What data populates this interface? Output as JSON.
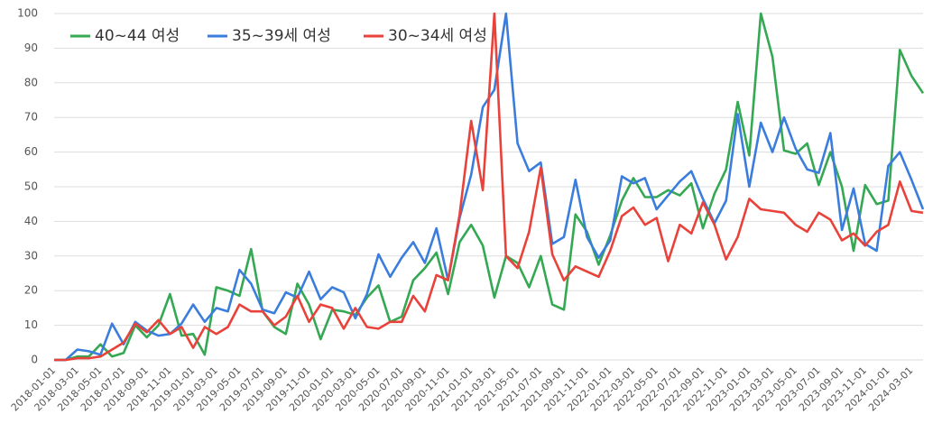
{
  "chart_data": {
    "type": "line",
    "categories": [
      "2018-01-01",
      null,
      "2018-03-01",
      null,
      "2018-05-01",
      null,
      "2018-07-01",
      null,
      "2018-09-01",
      null,
      "2018-11-01",
      null,
      "2019-01-01",
      null,
      "2019-03-01",
      null,
      "2019-05-01",
      null,
      "2019-07-01",
      null,
      "2019-09-01",
      null,
      "2019-11-01",
      null,
      "2020-01-01",
      null,
      "2020-03-01",
      null,
      "2020-05-01",
      null,
      "2020-07-01",
      null,
      "2020-09-01",
      null,
      "2020-11-01",
      null,
      "2021-01-01",
      null,
      "2021-03-01",
      null,
      "2021-05-01",
      null,
      "2021-07-01",
      null,
      "2021-09-01",
      null,
      "2021-11-01",
      null,
      "2022-01-01",
      null,
      "2022-03-01",
      null,
      "2022-05-01",
      null,
      "2022-07-01",
      null,
      "2022-09-01",
      null,
      "2022-11-01",
      null,
      "2023-01-01",
      null,
      "2023-03-01",
      null,
      "2023-05-01",
      null,
      "2023-07-01",
      null,
      "2023-09-01",
      null,
      "2023-11-01",
      null,
      "2024-01-01",
      null,
      "2024-03-01",
      null
    ],
    "series": [
      {
        "name": "40~44 여성",
        "color": "#34a853",
        "values": [
          0,
          0,
          1,
          1,
          4.5,
          1,
          2,
          10,
          6.5,
          10,
          19,
          7,
          7.5,
          1.5,
          21,
          20,
          18.5,
          32,
          14,
          9.5,
          7.5,
          22,
          16,
          6,
          14.5,
          14,
          13,
          18,
          21.5,
          11,
          12.5,
          23,
          26.5,
          31,
          19,
          34,
          39,
          33,
          18,
          30,
          28,
          21,
          30,
          16,
          14.5,
          42,
          37,
          27.5,
          36,
          46,
          52.5,
          47,
          47,
          49,
          47.5,
          51,
          38,
          48,
          55,
          74.5,
          59,
          100,
          87.5,
          60.5,
          59.5,
          62.5,
          50.5,
          60,
          50,
          31.5,
          50.5,
          45,
          46,
          89.5,
          82,
          77
        ]
      },
      {
        "name": "35~39세 여성",
        "color": "#3b7ddd",
        "values": [
          0,
          0,
          3,
          2.5,
          1.5,
          10.5,
          4.5,
          11,
          8.5,
          7,
          7.5,
          10.5,
          16,
          11,
          15,
          14,
          26,
          22,
          14.5,
          13.5,
          19.5,
          18,
          25.5,
          17.5,
          21,
          19.5,
          12,
          19,
          30.5,
          24,
          29.5,
          34,
          28,
          38,
          23,
          41,
          53.5,
          73,
          78,
          100,
          62.5,
          54.5,
          57,
          33.5,
          35.5,
          52,
          35.5,
          29.5,
          34.5,
          53,
          51,
          52.5,
          43.5,
          47.5,
          51.5,
          54.5,
          46.5,
          39.5,
          46,
          71,
          50,
          68.5,
          60,
          70,
          61,
          55,
          54,
          65.5,
          37.5,
          49.5,
          33.5,
          31.5,
          56,
          60,
          52,
          43.5
        ]
      },
      {
        "name": "30~34세 여성",
        "color": "#e8423a",
        "values": [
          0,
          0,
          0.5,
          0.5,
          1,
          3,
          5,
          10.5,
          8,
          11.5,
          7.5,
          9.5,
          3.5,
          9.5,
          7.5,
          9.5,
          16,
          14,
          14,
          10,
          12.5,
          18.5,
          11,
          16,
          15,
          9,
          15,
          9.5,
          9,
          11,
          11,
          18.5,
          14,
          24.5,
          23,
          42,
          69,
          49,
          100,
          30,
          26.5,
          37,
          55.5,
          30.5,
          23,
          27,
          25.5,
          24,
          31.5,
          41.5,
          44,
          39,
          41,
          28.5,
          39,
          36.5,
          45.5,
          39,
          29,
          35.5,
          46.5,
          43.5,
          43,
          42.5,
          39,
          37,
          42.5,
          40.5,
          34.5,
          36.5,
          33,
          37,
          39,
          51.5,
          43,
          42.5
        ]
      }
    ],
    "ylim": [
      0,
      100
    ],
    "yticks": [
      0,
      10,
      20,
      30,
      40,
      50,
      60,
      70,
      80,
      90,
      100
    ],
    "grid": true,
    "legend": "top-left"
  }
}
